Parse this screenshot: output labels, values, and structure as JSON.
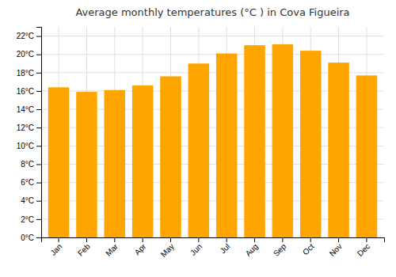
{
  "chart_data": {
    "type": "bar",
    "title": "Average monthly temperatures (°C ) in Cova Figueira",
    "categories": [
      "Jan",
      "Feb",
      "Mar",
      "Apr",
      "May",
      "Jun",
      "Jul",
      "Aug",
      "Sep",
      "Oct",
      "Nov",
      "Dec"
    ],
    "values": [
      16.4,
      15.9,
      16.1,
      16.6,
      17.6,
      19.0,
      20.1,
      21.0,
      21.1,
      20.4,
      19.1,
      17.7
    ],
    "color": "#FFA500",
    "ylim": [
      0,
      23
    ],
    "yticks": [
      {
        "value": 0,
        "label": "0°C"
      },
      {
        "value": 2,
        "label": "2°C"
      },
      {
        "value": 4,
        "label": "4°C"
      },
      {
        "value": 6,
        "label": "6°C"
      },
      {
        "value": 8,
        "label": "8°C"
      },
      {
        "value": 10,
        "label": "10°C"
      },
      {
        "value": 12,
        "label": "12°C"
      },
      {
        "value": 14,
        "label": "14°C"
      },
      {
        "value": 16,
        "label": "16°C"
      },
      {
        "value": 18,
        "label": "18°C"
      },
      {
        "value": 20,
        "label": "20°C"
      },
      {
        "value": 22,
        "label": "22°C"
      }
    ],
    "grid": true
  }
}
